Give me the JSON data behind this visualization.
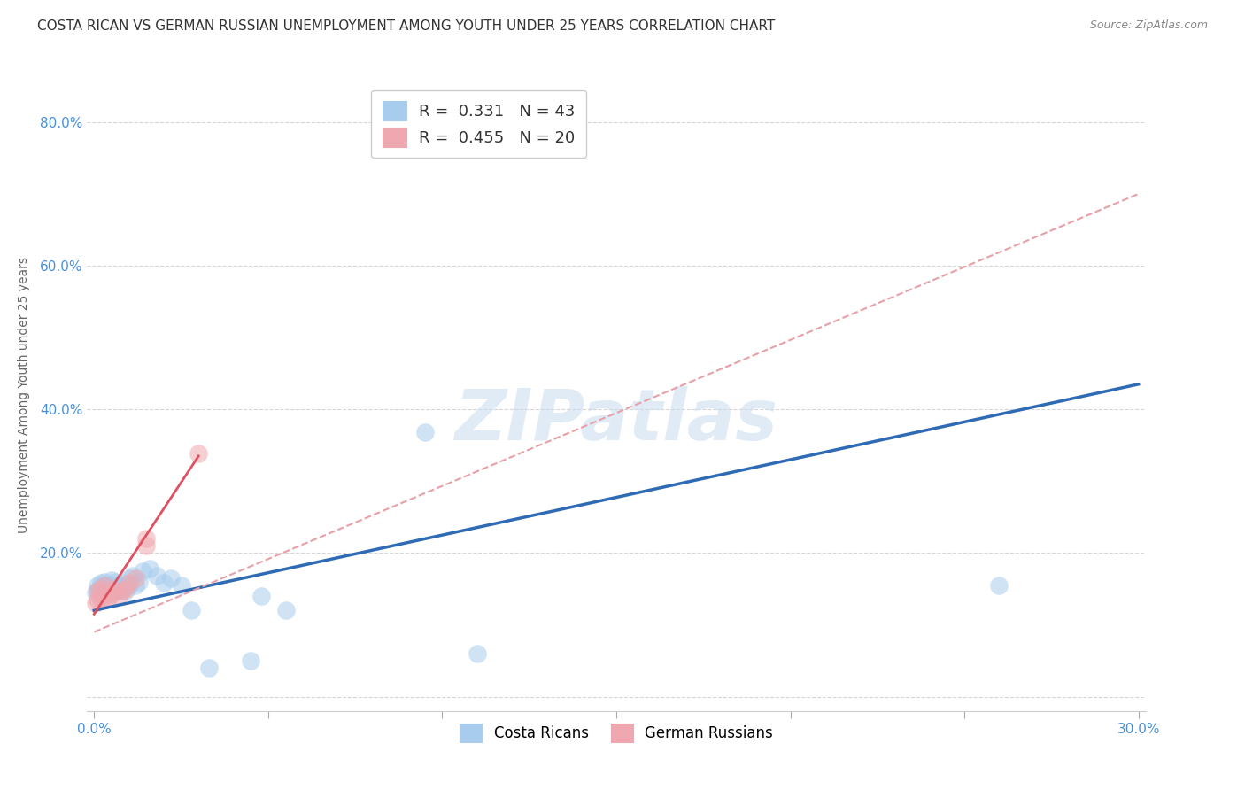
{
  "title": "COSTA RICAN VS GERMAN RUSSIAN UNEMPLOYMENT AMONG YOUTH UNDER 25 YEARS CORRELATION CHART",
  "source": "Source: ZipAtlas.com",
  "ylabel": "Unemployment Among Youth under 25 years",
  "watermark": "ZIPatlas",
  "xlim": [
    -0.002,
    0.302
  ],
  "ylim": [
    -0.02,
    0.86
  ],
  "xticks": [
    0.0,
    0.05,
    0.1,
    0.15,
    0.2,
    0.25,
    0.3
  ],
  "xtick_labels": [
    "0.0%",
    "",
    "",
    "",
    "",
    "",
    "30.0%"
  ],
  "yticks": [
    0.0,
    0.2,
    0.4,
    0.6,
    0.8
  ],
  "ytick_labels": [
    "",
    "20.0%",
    "40.0%",
    "60.0%",
    "80.0%"
  ],
  "costa_ricans_x": [
    0.0005,
    0.001,
    0.001,
    0.0015,
    0.002,
    0.002,
    0.0025,
    0.003,
    0.003,
    0.003,
    0.004,
    0.004,
    0.005,
    0.005,
    0.005,
    0.006,
    0.006,
    0.006,
    0.007,
    0.007,
    0.008,
    0.008,
    0.009,
    0.009,
    0.01,
    0.01,
    0.011,
    0.012,
    0.013,
    0.014,
    0.016,
    0.018,
    0.02,
    0.022,
    0.025,
    0.028,
    0.033,
    0.045,
    0.048,
    0.055,
    0.095,
    0.11,
    0.26
  ],
  "costa_ricans_y": [
    0.145,
    0.148,
    0.155,
    0.15,
    0.152,
    0.158,
    0.148,
    0.15,
    0.155,
    0.16,
    0.148,
    0.155,
    0.148,
    0.155,
    0.162,
    0.148,
    0.153,
    0.16,
    0.148,
    0.155,
    0.148,
    0.158,
    0.148,
    0.155,
    0.155,
    0.165,
    0.168,
    0.155,
    0.16,
    0.175,
    0.178,
    0.168,
    0.158,
    0.165,
    0.155,
    0.12,
    0.04,
    0.05,
    0.14,
    0.12,
    0.368,
    0.06,
    0.155
  ],
  "german_russians_x": [
    0.0005,
    0.001,
    0.001,
    0.002,
    0.002,
    0.002,
    0.003,
    0.003,
    0.004,
    0.005,
    0.005,
    0.006,
    0.007,
    0.008,
    0.009,
    0.01,
    0.012,
    0.015,
    0.015,
    0.03
  ],
  "german_russians_y": [
    0.13,
    0.135,
    0.148,
    0.135,
    0.143,
    0.15,
    0.138,
    0.155,
    0.138,
    0.143,
    0.15,
    0.148,
    0.14,
    0.148,
    0.15,
    0.158,
    0.165,
    0.21,
    0.22,
    0.338
  ],
  "blue_line_x": [
    0.0,
    0.3
  ],
  "blue_line_y": [
    0.12,
    0.435
  ],
  "pink_dashed_line_x": [
    0.0,
    0.3
  ],
  "pink_dashed_line_y": [
    0.09,
    0.7
  ],
  "pink_solid_line_x": [
    0.0,
    0.03
  ],
  "pink_solid_line_y": [
    0.115,
    0.335
  ],
  "dot_color_blue": "#A8CCEE",
  "dot_color_pink": "#F0A8B0",
  "line_color_blue": "#2F6BB5",
  "line_color_pink_solid": "#E05060",
  "line_color_pink_dashed": "#E8A0A8",
  "axis_color": "#4A90D9",
  "grid_color": "#CCCCCC",
  "title_fontsize": 11,
  "label_fontsize": 10
}
